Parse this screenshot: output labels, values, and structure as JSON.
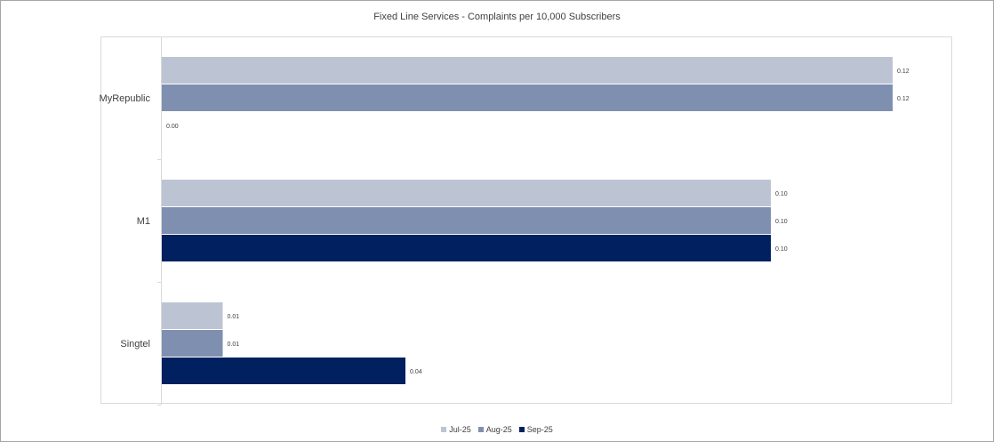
{
  "chart_data": {
    "type": "bar",
    "orientation": "horizontal",
    "title": "Fixed Line Services  - Complaints per 10,000 Subscribers",
    "categories": [
      "MyRepublic",
      "M1",
      "Singtel"
    ],
    "series": [
      {
        "name": "Jul-25",
        "color": "#bcc4d4",
        "values": [
          0.12,
          0.1,
          0.01
        ],
        "labels": [
          "0.12",
          "0.10",
          "0.01"
        ]
      },
      {
        "name": "Aug-25",
        "color": "#7f8fb0",
        "values": [
          0.12,
          0.1,
          0.01
        ],
        "labels": [
          "0.12",
          "0.10",
          "0.01"
        ]
      },
      {
        "name": "Sep-25",
        "color": "#002060",
        "values": [
          0.0,
          0.1,
          0.04
        ],
        "labels": [
          "0.00",
          "0.10",
          "0.04"
        ]
      }
    ],
    "xlim": [
      0,
      0.12
    ],
    "grid": false,
    "legend_position": "bottom"
  }
}
